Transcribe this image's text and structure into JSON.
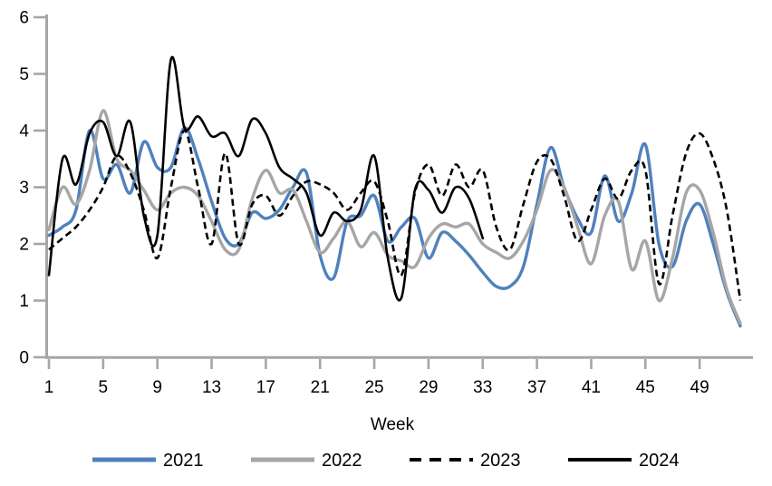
{
  "chart_data": {
    "type": "line",
    "title": "",
    "xlabel": "Week",
    "ylabel": "",
    "x_ticks": [
      1,
      5,
      9,
      13,
      17,
      21,
      25,
      29,
      33,
      37,
      41,
      45,
      49
    ],
    "y_ticks": [
      0,
      1,
      2,
      3,
      4,
      5,
      6
    ],
    "xlim": [
      1,
      52
    ],
    "ylim": [
      0,
      6
    ],
    "grid": false,
    "legend_position": "bottom",
    "axis_color": "#A6A6A6",
    "text_color": "#000000",
    "series": [
      {
        "name": "2021",
        "color": "#4F81BD",
        "style": "solid",
        "width": 3.4,
        "start_week": 1,
        "values": [
          2.15,
          2.3,
          2.6,
          4.0,
          3.15,
          3.4,
          2.9,
          3.8,
          3.35,
          3.35,
          4.05,
          3.5,
          2.75,
          2.1,
          2.0,
          2.55,
          2.45,
          2.6,
          3.0,
          3.25,
          1.8,
          1.4,
          2.4,
          2.5,
          2.85,
          2.05,
          2.3,
          2.45,
          1.75,
          2.2,
          2.05,
          1.8,
          1.5,
          1.25,
          1.25,
          1.6,
          2.7,
          3.7,
          3.0,
          2.45,
          2.2,
          3.2,
          2.4,
          2.9,
          3.75,
          2.0,
          1.6,
          2.4,
          2.7,
          2.0,
          1.15,
          0.55
        ]
      },
      {
        "name": "2022",
        "color": "#A6A6A6",
        "style": "solid",
        "width": 3.4,
        "start_week": 1,
        "values": [
          2.25,
          3.0,
          2.7,
          3.3,
          4.35,
          3.5,
          3.3,
          2.95,
          2.6,
          2.9,
          3.0,
          2.85,
          2.4,
          1.9,
          1.9,
          2.8,
          3.3,
          2.9,
          2.95,
          2.4,
          1.85,
          2.1,
          2.4,
          1.95,
          2.2,
          1.8,
          1.7,
          1.6,
          2.1,
          2.35,
          2.3,
          2.35,
          2.0,
          1.85,
          1.75,
          2.05,
          2.6,
          3.3,
          3.0,
          2.3,
          1.65,
          2.5,
          2.75,
          1.55,
          2.05,
          1.0,
          1.75,
          2.9,
          2.95,
          2.2,
          1.2,
          0.6
        ]
      },
      {
        "name": "2023",
        "color": "#000000",
        "style": "dashed",
        "width": 2.6,
        "start_week": 1,
        "values": [
          1.9,
          2.1,
          2.3,
          2.6,
          3.0,
          3.55,
          3.25,
          2.6,
          1.75,
          3.0,
          4.0,
          3.0,
          2.0,
          3.6,
          2.0,
          2.7,
          2.85,
          2.5,
          2.85,
          3.1,
          3.05,
          2.9,
          2.6,
          2.9,
          3.1,
          2.4,
          1.45,
          2.9,
          3.4,
          2.85,
          3.4,
          3.0,
          3.3,
          2.3,
          1.9,
          2.7,
          3.45,
          3.5,
          2.85,
          2.05,
          2.6,
          3.15,
          2.8,
          3.3,
          3.3,
          1.3,
          2.5,
          3.6,
          3.95,
          3.5,
          2.6,
          1.0
        ]
      },
      {
        "name": "2024",
        "color": "#000000",
        "style": "solid",
        "width": 2.6,
        "start_week": 1,
        "values": [
          1.45,
          3.5,
          3.05,
          3.95,
          4.15,
          3.55,
          4.15,
          2.5,
          2.15,
          5.25,
          4.05,
          4.25,
          3.9,
          3.95,
          3.55,
          4.2,
          3.95,
          3.35,
          3.15,
          2.9,
          2.15,
          2.55,
          2.4,
          2.6,
          3.55,
          1.75,
          1.05,
          2.95,
          2.95,
          2.55,
          3.0,
          2.8,
          2.1
        ]
      }
    ],
    "legend": [
      {
        "label": "2021",
        "swatch": "blue-solid-line"
      },
      {
        "label": "2022",
        "swatch": "gray-solid-line"
      },
      {
        "label": "2023",
        "swatch": "black-dashed-line"
      },
      {
        "label": "2024",
        "swatch": "black-solid-line"
      }
    ]
  }
}
